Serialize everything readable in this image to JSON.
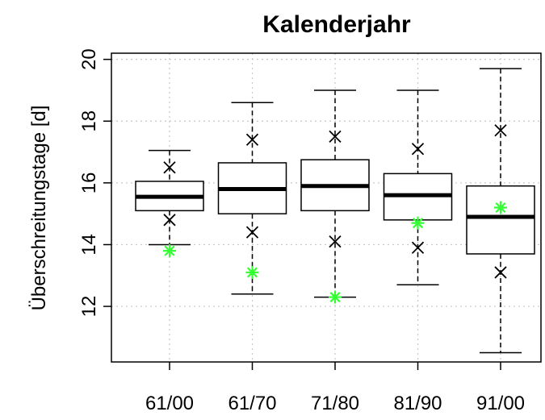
{
  "chart_data": {
    "type": "boxplot",
    "title": "Kalenderjahr",
    "xlabel": "",
    "ylabel": "Überschreitungstage [d]",
    "ylim": [
      10.2,
      20.2
    ],
    "yticks": [
      12,
      14,
      16,
      18,
      20
    ],
    "grid": true,
    "categories": [
      "61/00",
      "61/70",
      "71/80",
      "81/90",
      "91/00"
    ],
    "boxes": [
      {
        "min": 14.0,
        "q1": 15.1,
        "median": 15.55,
        "q3": 16.05,
        "max": 17.05
      },
      {
        "min": 12.4,
        "q1": 15.0,
        "median": 15.8,
        "q3": 16.65,
        "max": 18.6
      },
      {
        "min": 12.3,
        "q1": 15.1,
        "median": 15.9,
        "q3": 16.75,
        "max": 19.0
      },
      {
        "min": 12.7,
        "q1": 14.8,
        "median": 15.6,
        "q3": 16.3,
        "max": 19.0
      },
      {
        "min": 10.5,
        "q1": 13.7,
        "median": 14.9,
        "q3": 15.9,
        "max": 19.7
      }
    ],
    "cross_markers": [
      [
        16.5,
        14.8
      ],
      [
        17.4,
        14.4
      ],
      [
        17.5,
        14.1
      ],
      [
        17.1,
        13.9
      ],
      [
        17.7,
        13.1
      ]
    ],
    "star_markers": [
      13.8,
      13.1,
      12.3,
      14.7,
      15.2
    ],
    "colors": {
      "star": "#33ff33",
      "box": "#000000",
      "grid": "#c8c8c8"
    }
  }
}
